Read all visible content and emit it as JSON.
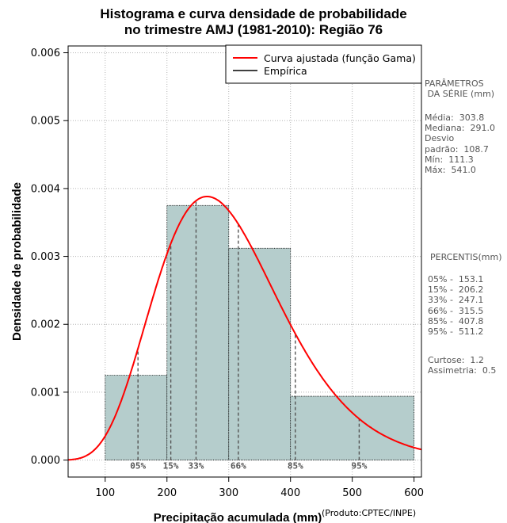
{
  "chart_data": {
    "type": "bar",
    "title": [
      "Histograma e curva densidade de probabilidade",
      "no trimestre AMJ (1981-2010): Região 76"
    ],
    "xlabel": "Precipitação acumulada (mm)",
    "ylabel": "Densidade de probabilidade",
    "xlim": [
      40,
      612
    ],
    "ylim": [
      -0.00025,
      0.0061
    ],
    "x_ticks": [
      100,
      200,
      300,
      400,
      500,
      600
    ],
    "x_tick_labels": [
      "100",
      "200",
      "300",
      "400",
      "500",
      "600"
    ],
    "y_ticks": [
      0,
      0.001,
      0.002,
      0.003,
      0.004,
      0.005,
      0.006
    ],
    "y_tick_labels": [
      "0.000",
      "0.001",
      "0.002",
      "0.003",
      "0.004",
      "0.005",
      "0.006"
    ],
    "grid": true,
    "bins": [
      {
        "start": 100,
        "end": 200,
        "density": 0.00125
      },
      {
        "start": 200,
        "end": 300,
        "density": 0.00375
      },
      {
        "start": 300,
        "end": 400,
        "density": 0.00312
      },
      {
        "start": 400,
        "end": 600,
        "density": 0.00094
      }
    ],
    "curve": {
      "name": "Curva ajustada (função Gama)",
      "mean": 303.8,
      "sd": 108.7,
      "color": "#ff0000"
    },
    "percentile_lines": [
      {
        "label": "05%",
        "value": 153.1
      },
      {
        "label": "15%",
        "value": 206.2
      },
      {
        "label": "33%",
        "value": 247.1
      },
      {
        "label": "66%",
        "value": 315.5
      },
      {
        "label": "85%",
        "value": 407.8
      },
      {
        "label": "95%",
        "value": 511.2
      }
    ],
    "legend": {
      "position": "top-right",
      "entries": [
        {
          "label": "Curva ajustada (função Gama)",
          "color": "#ff0000"
        },
        {
          "label": "Empírica",
          "color": "#000000"
        }
      ]
    },
    "colors": {
      "bar_fill": "#b5cdcc",
      "bar_stroke": "#000000",
      "curve": "#ff0000",
      "grid": "#b4b4b4",
      "percentile": "#555555"
    }
  },
  "side_panel": {
    "params_header": "PARÂMETROS\n DA SÉRIE (mm)",
    "params_body": "Média:  303.8\nMediana:  291.0\nDesvio\npadrão:  108.7\nMín:  111.3\nMáx:  541.0",
    "percentis_header": "PERCENTIS(mm)",
    "percentis_body": "05% -  153.1\n15% -  206.2\n33% -  247.1\n66% -  315.5\n85% -  407.8\n95% -  511.2",
    "stats_body": "Curtose:  1.2\nAssimetria:  0.5"
  },
  "credit": "(Produto:CPTEC/INPE)"
}
